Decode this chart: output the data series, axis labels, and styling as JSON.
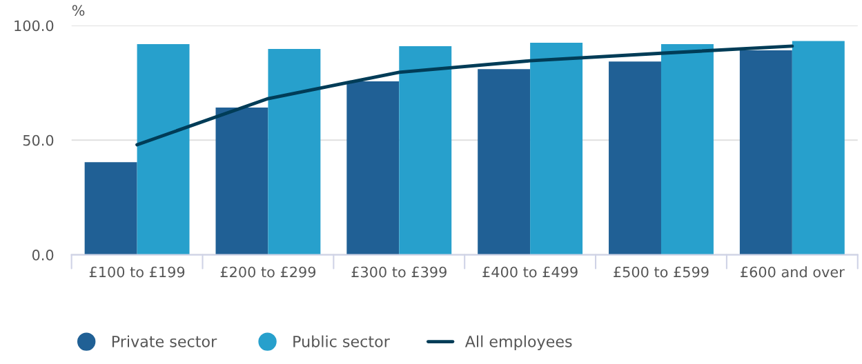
{
  "chart_data": {
    "type": "bar",
    "ylabel": "%",
    "categories": [
      "£100 to £199",
      "£200 to £299",
      "£300 to £399",
      "£400 to £499",
      "£500 to £599",
      "£600 and over"
    ],
    "series": [
      {
        "name": "Private sector",
        "color": "#206095",
        "values": [
          40.4,
          64.2,
          75.6,
          81.0,
          84.3,
          89.2
        ]
      },
      {
        "name": "Public sector",
        "color": "#27a0cc",
        "values": [
          91.9,
          89.8,
          91.0,
          92.5,
          91.9,
          93.2
        ]
      },
      {
        "name": "All employees",
        "type": "line",
        "color": "#003c57",
        "values": [
          48.0,
          68.1,
          79.6,
          84.6,
          87.9,
          91.0
        ]
      }
    ],
    "ylim": [
      0,
      100
    ],
    "yticks": [
      {
        "value": 0,
        "label": "0.0"
      },
      {
        "value": 50,
        "label": "50.0"
      },
      {
        "value": 100,
        "label": "100.0"
      }
    ],
    "grid": "y",
    "legend": "bottom",
    "marker": "none",
    "line_style": "solid"
  }
}
